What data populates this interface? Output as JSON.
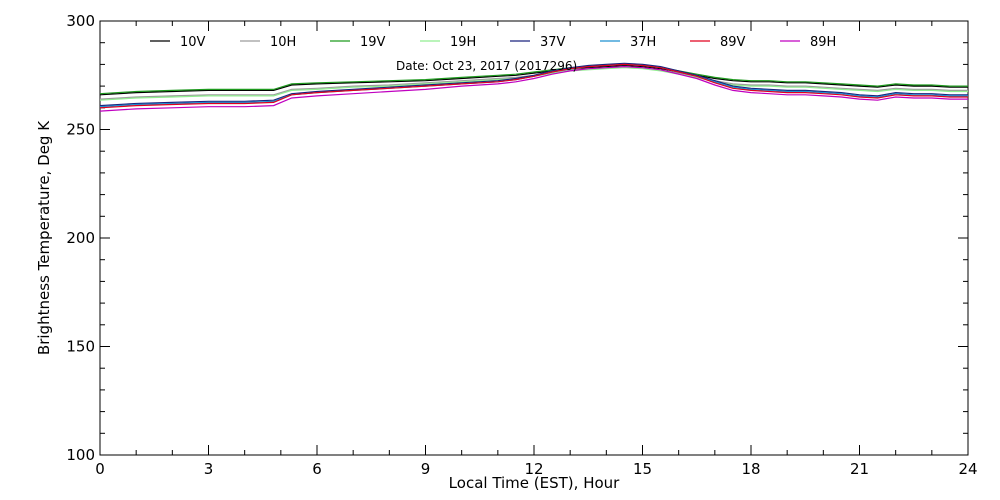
{
  "chart_data": {
    "type": "line",
    "title": "",
    "annotation": "Date: Oct 23, 2017 (2017296)",
    "xlabel": "Local Time (EST), Hour",
    "ylabel": "Brightness Temperature, Deg K",
    "xlim": [
      0,
      24
    ],
    "ylim": [
      100,
      300
    ],
    "xticks": [
      0,
      3,
      6,
      9,
      12,
      15,
      18,
      21,
      24
    ],
    "yticks": [
      100,
      150,
      200,
      250,
      300
    ],
    "grid": false,
    "legend_position": "top",
    "x": [
      0,
      1,
      2,
      3,
      4,
      4.8,
      5.3,
      6,
      7,
      8,
      9,
      10,
      11,
      11.5,
      12,
      12.5,
      13,
      13.5,
      14,
      14.5,
      15,
      15.5,
      16,
      16.5,
      17,
      17.5,
      18,
      18.5,
      19,
      19.5,
      20,
      20.5,
      21,
      21.5,
      22,
      22.5,
      23,
      23.5,
      24
    ],
    "series": [
      {
        "name": "10V",
        "color": "#000000",
        "values": [
          266,
          267,
          267.5,
          268,
          268,
          268,
          270.5,
          271,
          271.5,
          272,
          272.5,
          273.5,
          274.5,
          275,
          276,
          277,
          278,
          278.5,
          279,
          279.5,
          279,
          278,
          276.5,
          275,
          273.5,
          272.5,
          272,
          272,
          271.5,
          271.5,
          271,
          270.5,
          270,
          269.5,
          270.5,
          270,
          270,
          269.5,
          269.5
        ]
      },
      {
        "name": "10H",
        "color": "#9c9c9c",
        "values": [
          264,
          265,
          265.5,
          266,
          266,
          266,
          268.5,
          269,
          270,
          270.5,
          271.5,
          272.5,
          273.5,
          274,
          275,
          276.5,
          277.5,
          278,
          278.5,
          279,
          278.5,
          277.5,
          276,
          274.5,
          272.5,
          271,
          270.5,
          270.5,
          270,
          270,
          269.5,
          269,
          268.5,
          268,
          269,
          268.5,
          268.5,
          268,
          268
        ]
      },
      {
        "name": "19V",
        "color": "#1f9a1f",
        "values": [
          266.5,
          267.5,
          268,
          268.5,
          268.5,
          268.5,
          271,
          271.5,
          272,
          272.5,
          273,
          274,
          275,
          275.5,
          276.5,
          277.5,
          278.5,
          279,
          279.5,
          280,
          279.5,
          278.5,
          277,
          275.5,
          274,
          273,
          272.5,
          272.5,
          272,
          272,
          271.5,
          271,
          270.5,
          270,
          271,
          270.5,
          270.5,
          270,
          270
        ]
      },
      {
        "name": "19H",
        "color": "#90ee90",
        "values": [
          263.5,
          264.5,
          265,
          265.5,
          265.5,
          265.5,
          268,
          268.5,
          269.5,
          270,
          271,
          272,
          273,
          273.5,
          274.5,
          276,
          277,
          277.5,
          278,
          278.5,
          278,
          277,
          275.5,
          274,
          272,
          270.5,
          270,
          270,
          269.5,
          269.5,
          269,
          268.5,
          268,
          267.5,
          268.5,
          268,
          268,
          267.5,
          267.5
        ]
      },
      {
        "name": "37V",
        "color": "#1a237e",
        "values": [
          261,
          262,
          262.5,
          263,
          263,
          263.5,
          266.5,
          267.5,
          268.5,
          269.5,
          270.5,
          271.5,
          272.5,
          273.5,
          275,
          277,
          278.5,
          279.5,
          280,
          280.5,
          280,
          279,
          277,
          275,
          272.5,
          270,
          269,
          268.5,
          268,
          268,
          267.5,
          267,
          266,
          265.5,
          267,
          266.5,
          266.5,
          266,
          266
        ]
      },
      {
        "name": "37H",
        "color": "#1e90d0",
        "values": [
          260.5,
          261.5,
          262,
          262.5,
          262.5,
          263,
          266,
          267,
          268,
          269,
          270,
          271,
          272,
          273,
          274.5,
          276.5,
          278,
          279,
          279.5,
          280,
          279.5,
          278.5,
          276.5,
          274.5,
          272,
          269.5,
          268.5,
          268,
          267.5,
          267.5,
          267,
          266.5,
          265.5,
          265,
          266.5,
          266,
          266,
          265.5,
          265.5
        ]
      },
      {
        "name": "89V",
        "color": "#e0001e",
        "values": [
          260,
          261,
          261.5,
          262,
          262,
          262.5,
          266,
          267,
          268,
          269,
          270,
          271,
          272,
          273,
          274.5,
          276.5,
          278,
          279,
          279.5,
          280,
          279.5,
          278.5,
          276.5,
          274.5,
          271.5,
          269,
          268,
          267.5,
          267,
          267,
          266.5,
          266,
          265,
          264.5,
          266,
          265.5,
          265.5,
          265,
          265
        ]
      },
      {
        "name": "89H",
        "color": "#c000c0",
        "values": [
          258.5,
          259.5,
          260,
          260.5,
          260.5,
          261,
          264.5,
          265.5,
          266.5,
          267.5,
          268.5,
          270,
          271,
          272,
          273.5,
          275.5,
          277,
          278,
          278.5,
          279,
          278.5,
          277.5,
          275.5,
          273.5,
          270.5,
          268,
          267,
          266.5,
          266,
          266,
          265.5,
          265,
          264,
          263.5,
          265,
          264.5,
          264.5,
          264,
          264
        ]
      }
    ]
  }
}
